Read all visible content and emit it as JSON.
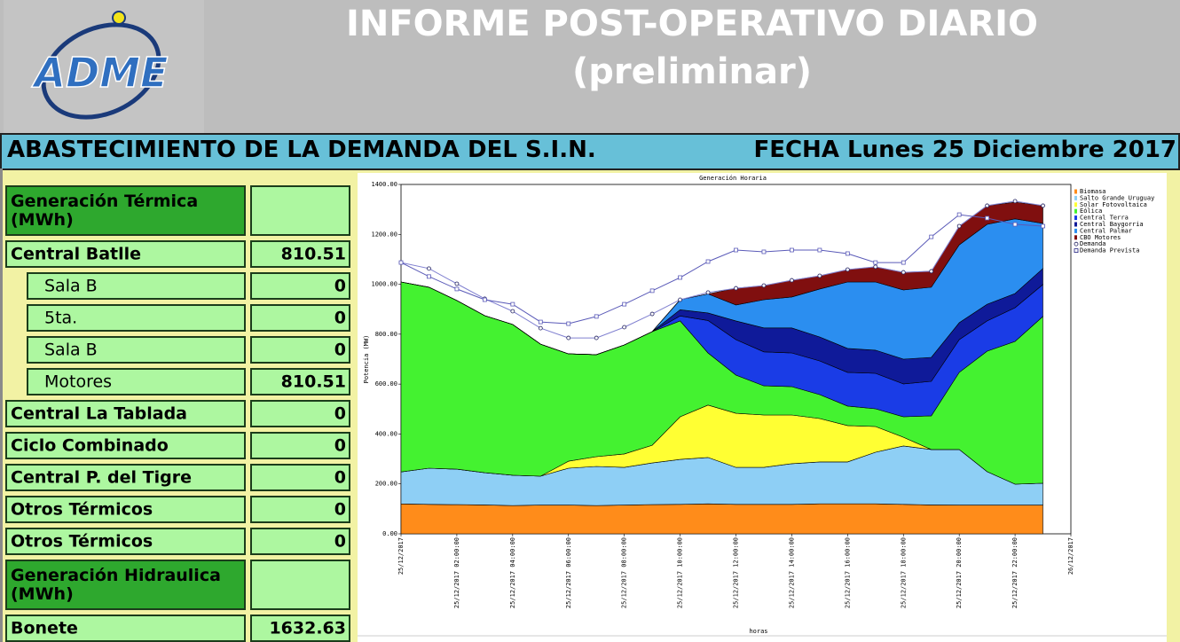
{
  "header": {
    "logo": "ADME",
    "title_line1": "INFORME POST-OPERATIVO DIARIO",
    "title_line2": "(preliminar)"
  },
  "bar": {
    "left": "ABASTECIMIENTO DE LA DEMANDA DEL S.I.N.",
    "right": "FECHA Lunes 25 Diciembre 2017"
  },
  "table": {
    "rows": [
      {
        "label": "Generación Térmica (MWh)",
        "style": "section"
      },
      {
        "label": "Central Batlle",
        "value": 810.51,
        "style": "item"
      },
      {
        "label": "Sala B",
        "value": 0,
        "style": "sub"
      },
      {
        "label": "5ta.",
        "value": 0,
        "style": "sub"
      },
      {
        "label": "Sala B",
        "value": 0,
        "style": "sub"
      },
      {
        "label": "Motores",
        "value": 810.51,
        "style": "sub"
      },
      {
        "label": "Central La Tablada",
        "value": 0,
        "style": "item"
      },
      {
        "label": "Ciclo Combinado",
        "value": 0,
        "style": "item"
      },
      {
        "label": "Central P. del Tigre",
        "value": 0,
        "style": "item"
      },
      {
        "label": "Otros Térmicos",
        "value": 0,
        "style": "item"
      },
      {
        "label": "Otros Térmicos",
        "value": 0,
        "style": "item"
      },
      {
        "label": "Generación Hidraulica (MWh)",
        "style": "section"
      },
      {
        "label": "Bonete",
        "value": 1632.63,
        "style": "item"
      }
    ]
  },
  "chart_data": {
    "type": "area",
    "stacked": true,
    "title": "Generación Horaria",
    "x_label": "horas",
    "y_label": "Potencia (MW)",
    "x": [
      0,
      1,
      2,
      3,
      4,
      5,
      6,
      7,
      8,
      9,
      10,
      11,
      12,
      13,
      14,
      15,
      16,
      17,
      18,
      19,
      20,
      21,
      22,
      23
    ],
    "xlim": [
      0,
      24
    ],
    "xticks": [
      {
        "value": 0,
        "label": "25/12/2017"
      },
      {
        "value": 2,
        "label": "25/12/2017 02:00:00"
      },
      {
        "value": 4,
        "label": "25/12/2017 04:00:00"
      },
      {
        "value": 6,
        "label": "25/12/2017 06:00:00"
      },
      {
        "value": 8,
        "label": "25/12/2017 08:00:00"
      },
      {
        "value": 10,
        "label": "25/12/2017 10:00:00"
      },
      {
        "value": 12,
        "label": "25/12/2017 12:00:00"
      },
      {
        "value": 14,
        "label": "25/12/2017 14:00:00"
      },
      {
        "value": 16,
        "label": "25/12/2017 16:00:00"
      },
      {
        "value": 18,
        "label": "25/12/2017 18:00:00"
      },
      {
        "value": 20,
        "label": "25/12/2017 20:00:00"
      },
      {
        "value": 22,
        "label": "25/12/2017 22:00:00"
      },
      {
        "value": 24,
        "label": "26/12/2017"
      }
    ],
    "ylim": [
      0,
      1400
    ],
    "yticks": [
      {
        "value": 0,
        "label": "0.00"
      },
      {
        "value": 200,
        "label": "200.00"
      },
      {
        "value": 400,
        "label": "400.00"
      },
      {
        "value": 600,
        "label": "600.00"
      },
      {
        "value": 800,
        "label": "800.00"
      },
      {
        "value": 1000,
        "label": "1000.00"
      },
      {
        "value": 1200,
        "label": "1200.00"
      },
      {
        "value": 1400,
        "label": "1400.00"
      }
    ],
    "legend": "right",
    "series": [
      {
        "name": "Biomasa",
        "kind": "area",
        "color": "#ff8c1a",
        "values": [
          120,
          118,
          117,
          116,
          113,
          115,
          115,
          113,
          115,
          117,
          118,
          120,
          118,
          118,
          118,
          120,
          120,
          120,
          118,
          116,
          115,
          115,
          115,
          115
        ]
      },
      {
        "name": "Salto Grande Uruguay",
        "kind": "area",
        "color": "#8ecff5",
        "values": [
          128,
          145,
          142,
          129,
          122,
          116,
          148,
          157,
          151,
          167,
          180,
          186,
          148,
          148,
          163,
          168,
          168,
          207,
          234,
          222,
          223,
          134,
          84,
          88
        ]
      },
      {
        "name": "Solar Fotovoltaica",
        "kind": "area",
        "color": "#ffff33",
        "values": [
          0,
          0,
          0,
          0,
          0,
          0,
          28,
          39,
          54,
          71,
          171,
          210,
          217,
          210,
          195,
          174,
          146,
          103,
          35,
          0,
          0,
          0,
          0,
          0
        ]
      },
      {
        "name": "Eólica",
        "kind": "area",
        "color": "#44f230",
        "values": [
          761,
          725,
          676,
          629,
          604,
          529,
          430,
          409,
          437,
          455,
          384,
          209,
          153,
          117,
          114,
          96,
          78,
          71,
          82,
          135,
          309,
          483,
          572,
          668
        ]
      },
      {
        "name": "Central Terra",
        "kind": "area",
        "color": "#1a3ce6",
        "values": [
          0,
          0,
          0,
          0,
          0,
          0,
          0,
          0,
          0,
          0,
          20,
          130,
          142,
          136,
          135,
          135,
          135,
          142,
          132,
          138,
          131,
          121,
          135,
          128
        ]
      },
      {
        "name": "Central Baygorria",
        "kind": "area",
        "color": "#0f1a99",
        "values": [
          0,
          0,
          0,
          0,
          0,
          0,
          0,
          0,
          0,
          0,
          25,
          30,
          75,
          96,
          100,
          96,
          96,
          93,
          99,
          96,
          68,
          67,
          57,
          64
        ]
      },
      {
        "name": "Central Palmar",
        "kind": "area",
        "color": "#2b8ef0",
        "values": [
          0,
          0,
          0,
          0,
          0,
          0,
          0,
          0,
          0,
          0,
          40,
          76,
          64,
          113,
          124,
          192,
          266,
          273,
          277,
          281,
          312,
          320,
          299,
          181
        ]
      },
      {
        "name": "CBO Motores",
        "kind": "area",
        "color": "#800f0f",
        "values": [
          0,
          0,
          0,
          0,
          0,
          0,
          0,
          0,
          0,
          0,
          0,
          0,
          67,
          57,
          67,
          53,
          50,
          61,
          71,
          64,
          75,
          75,
          67,
          71
        ]
      },
      {
        "name": "Demanda",
        "kind": "line",
        "marker": "circle",
        "color": "#8080d0",
        "values": [
          1087,
          1063,
          1002,
          942,
          892,
          824,
          785,
          785,
          828,
          881,
          938,
          967,
          984,
          995,
          1016,
          1034,
          1059,
          1070,
          1048,
          1052,
          1233,
          1315,
          1333,
          1315
        ]
      },
      {
        "name": "Demanda Prevista",
        "kind": "line",
        "marker": "square",
        "color": "#5a5ab8",
        "values": [
          1087,
          1031,
          981,
          938,
          920,
          849,
          842,
          871,
          920,
          974,
          1027,
          1091,
          1137,
          1130,
          1137,
          1137,
          1123,
          1087,
          1087,
          1190,
          1279,
          1265,
          1240,
          1233
        ]
      }
    ]
  }
}
